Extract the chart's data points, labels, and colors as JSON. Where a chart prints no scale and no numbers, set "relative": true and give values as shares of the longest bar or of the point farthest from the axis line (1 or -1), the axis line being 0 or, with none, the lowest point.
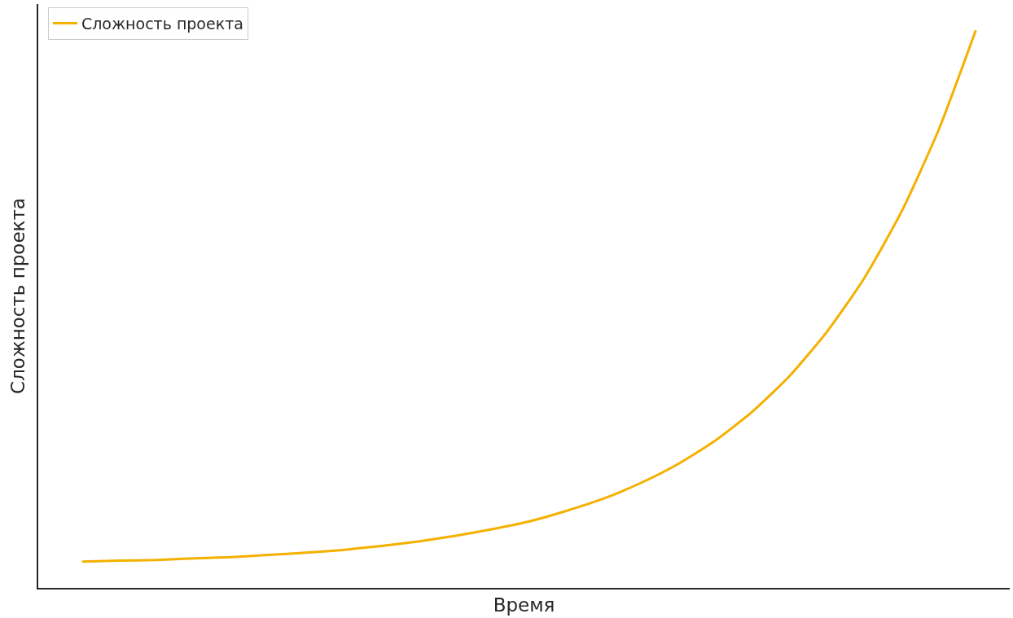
{
  "chart_data": {
    "type": "line",
    "relative": true,
    "xlabel": "Время",
    "ylabel": "Сложность проекта",
    "categories": [
      null,
      null,
      null,
      null,
      null,
      null,
      null,
      null,
      null,
      null,
      null,
      null,
      null,
      null,
      null,
      null,
      null,
      null,
      null,
      null,
      null,
      null,
      null,
      null,
      null
    ],
    "series": [
      {
        "name": "Сложность проекта",
        "color": "#f5b000",
        "values": [
          0.047,
          0.049,
          0.05,
          0.053,
          0.055,
          0.059,
          0.063,
          0.068,
          0.075,
          0.083,
          0.093,
          0.105,
          0.119,
          0.138,
          0.16,
          0.188,
          0.222,
          0.264,
          0.316,
          0.38,
          0.459,
          0.555,
          0.674,
          0.821,
          1.0
        ]
      }
    ],
    "legend": "top left",
    "marker": "none",
    "line_style": "solid"
  }
}
